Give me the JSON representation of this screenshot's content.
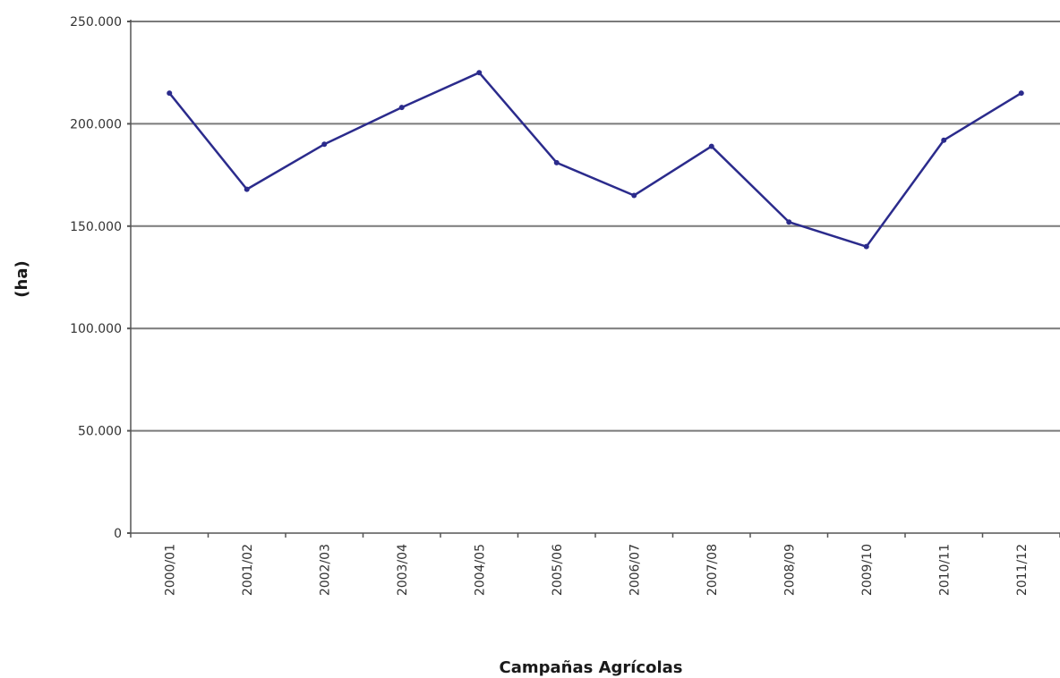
{
  "chart_data": {
    "type": "line",
    "title": "",
    "xlabel": "Campañas Agrícolas",
    "ylabel": "(ha)",
    "categories": [
      "2000/01",
      "2001/02",
      "2002/03",
      "2003/04",
      "2004/05",
      "2005/06",
      "2006/07",
      "2007/08",
      "2008/09",
      "2009/10",
      "2010/11",
      "2011/12"
    ],
    "series": [
      {
        "values": [
          215000,
          168000,
          190000,
          208000,
          225000,
          181000,
          165000,
          189000,
          152000,
          140000,
          192000,
          215000
        ]
      }
    ],
    "ylim": [
      0,
      250000
    ],
    "yticks": [
      0,
      50000,
      100000,
      150000,
      200000,
      250000
    ],
    "ytick_labels": [
      "0",
      "50.000",
      "100.000",
      "150.000",
      "200.000",
      "250.000"
    ],
    "grid": true,
    "legend": "none",
    "colors": {
      "line": "#2b2b8c",
      "grid": "#7a7a7a",
      "axis": "#555555"
    }
  }
}
